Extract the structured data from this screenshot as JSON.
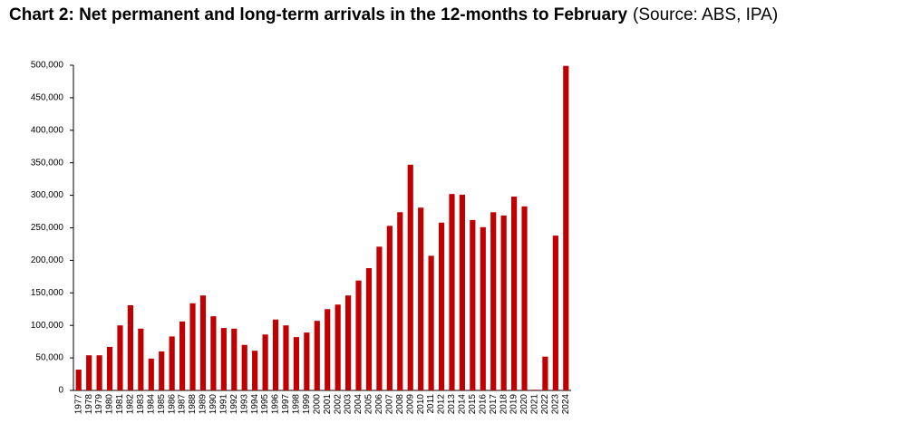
{
  "chart_data": {
    "type": "bar",
    "title": "Chart 2: Net permanent and long-term arrivals in the 12-months to February",
    "subtitle": "(Source: ABS, IPA)",
    "categories": [
      "1977",
      "1978",
      "1979",
      "1980",
      "1981",
      "1982",
      "1983",
      "1984",
      "1985",
      "1986",
      "1987",
      "1988",
      "1989",
      "1990",
      "1991",
      "1992",
      "1993",
      "1994",
      "1995",
      "1996",
      "1997",
      "1998",
      "1999",
      "2000",
      "2001",
      "2002",
      "2003",
      "2004",
      "2005",
      "2006",
      "2007",
      "2008",
      "2009",
      "2010",
      "2011",
      "2012",
      "2013",
      "2014",
      "2015",
      "2016",
      "2017",
      "2018",
      "2019",
      "2020",
      "2021",
      "2022",
      "2023",
      "2024"
    ],
    "values": [
      32000,
      54000,
      54000,
      67000,
      100000,
      131000,
      95000,
      49000,
      60000,
      83000,
      106000,
      134000,
      146000,
      114000,
      96000,
      95000,
      70000,
      61000,
      86000,
      109000,
      100000,
      82000,
      89000,
      107000,
      125000,
      132000,
      146000,
      169000,
      188000,
      221000,
      253000,
      274000,
      347000,
      281000,
      207000,
      258000,
      302000,
      301000,
      262000,
      251000,
      274000,
      269000,
      298000,
      283000,
      1000,
      52000,
      238000,
      499000
    ],
    "color": "#c00000",
    "ylim": [
      0,
      500000
    ],
    "yticks": [
      0,
      {
        "value": 50000,
        "label": "50,000"
      },
      {
        "value": 100000,
        "label": "100,000"
      },
      {
        "value": 150000,
        "label": "150,000"
      },
      {
        "value": 200000,
        "label": "200,000"
      },
      {
        "value": 250000,
        "label": "250,000"
      },
      {
        "value": 300000,
        "label": "300,000"
      },
      {
        "value": 350000,
        "label": "350,000"
      },
      {
        "value": 400000,
        "label": "400,000"
      },
      {
        "value": 450000,
        "label": "450,000"
      },
      {
        "value": 500000,
        "label": "500,000"
      }
    ],
    "grid": false
  }
}
